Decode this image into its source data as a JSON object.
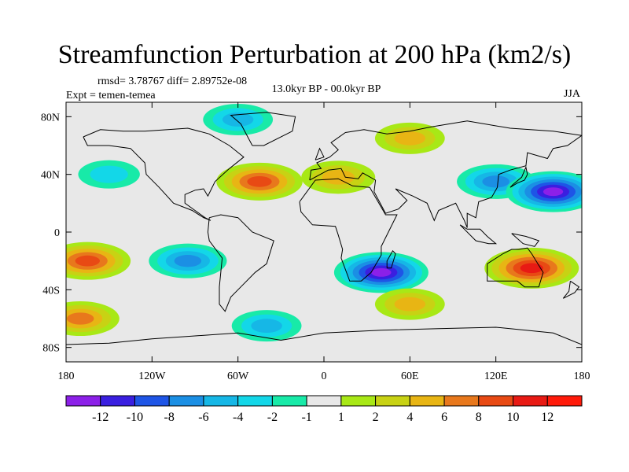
{
  "chart_data": {
    "type": "heatmap",
    "title": "Streamfunction Perturbation at 200 hPa (km2/s)",
    "stats_line": "rmsd= 3.78767 diff= 2.89752e-08",
    "experiment_label": "Expt = temen-temea",
    "period_label": "13.0kyr BP - 00.0kyr BP",
    "season_label": "JJA",
    "projection": "cylindrical equidistant",
    "xlim": [
      -180,
      180
    ],
    "ylim": [
      -90,
      90
    ],
    "x_ticks": [
      {
        "value": -180,
        "label": "180"
      },
      {
        "value": -120,
        "label": "120W"
      },
      {
        "value": -60,
        "label": "60W"
      },
      {
        "value": 0,
        "label": "0"
      },
      {
        "value": 60,
        "label": "60E"
      },
      {
        "value": 120,
        "label": "120E"
      },
      {
        "value": 180,
        "label": "180"
      }
    ],
    "y_ticks": [
      {
        "value": 80,
        "label": "80N"
      },
      {
        "value": 40,
        "label": "40N"
      },
      {
        "value": 0,
        "label": "0"
      },
      {
        "value": -40,
        "label": "40S"
      },
      {
        "value": -80,
        "label": "80S"
      }
    ],
    "contour_levels": [
      -12,
      -10,
      -8,
      -6,
      -4,
      -2,
      -1,
      1,
      2,
      4,
      6,
      8,
      10,
      12
    ],
    "colorbar_labels": [
      "-12",
      "-10",
      "-8",
      "-6",
      "-4",
      "-2",
      "-1",
      "1",
      "2",
      "4",
      "6",
      "8",
      "10",
      "12"
    ],
    "colorbar_colors": [
      "#8c20e8",
      "#3a1fe0",
      "#1e55e6",
      "#1b8fe4",
      "#16b7e6",
      "#13d7e8",
      "#18eaa8",
      "#e8e8e8",
      "#a8e816",
      "#c8d214",
      "#e8b514",
      "#e8781c",
      "#e84a14",
      "#e81a14"
    ],
    "features": [
      {
        "name": "North Pacific / Alaska",
        "lon": -150,
        "lat": 40,
        "value": -2
      },
      {
        "name": "Central North Atlantic",
        "lon": -45,
        "lat": 35,
        "value": 8
      },
      {
        "name": "North Africa / Mediterranean",
        "lon": 10,
        "lat": 38,
        "value": 5
      },
      {
        "name": "Greenland / Canadian Arctic",
        "lon": -60,
        "lat": 78,
        "value": -4
      },
      {
        "name": "North Asia",
        "lon": 60,
        "lat": 65,
        "value": 4
      },
      {
        "name": "East Asia / NW Pacific",
        "lon": 120,
        "lat": 35,
        "value": -6
      },
      {
        "name": "Northwest Pacific low",
        "lon": 160,
        "lat": 28,
        "value": -12
      },
      {
        "name": "South Pacific",
        "lon": -165,
        "lat": -20,
        "value": 8
      },
      {
        "name": "Eastern South Pacific",
        "lon": -95,
        "lat": -20,
        "value": -6
      },
      {
        "name": "Southern Africa low",
        "lon": 40,
        "lat": -28,
        "value": -12
      },
      {
        "name": "Australia high",
        "lon": 145,
        "lat": -25,
        "value": 10
      },
      {
        "name": "South Indian Ocean",
        "lon": 60,
        "lat": -50,
        "value": 4
      },
      {
        "name": "Southern Ocean Pacific",
        "lon": -170,
        "lat": -60,
        "value": 6
      },
      {
        "name": "Southern Ocean Atlantic",
        "lon": -40,
        "lat": -65,
        "value": -4
      }
    ]
  }
}
